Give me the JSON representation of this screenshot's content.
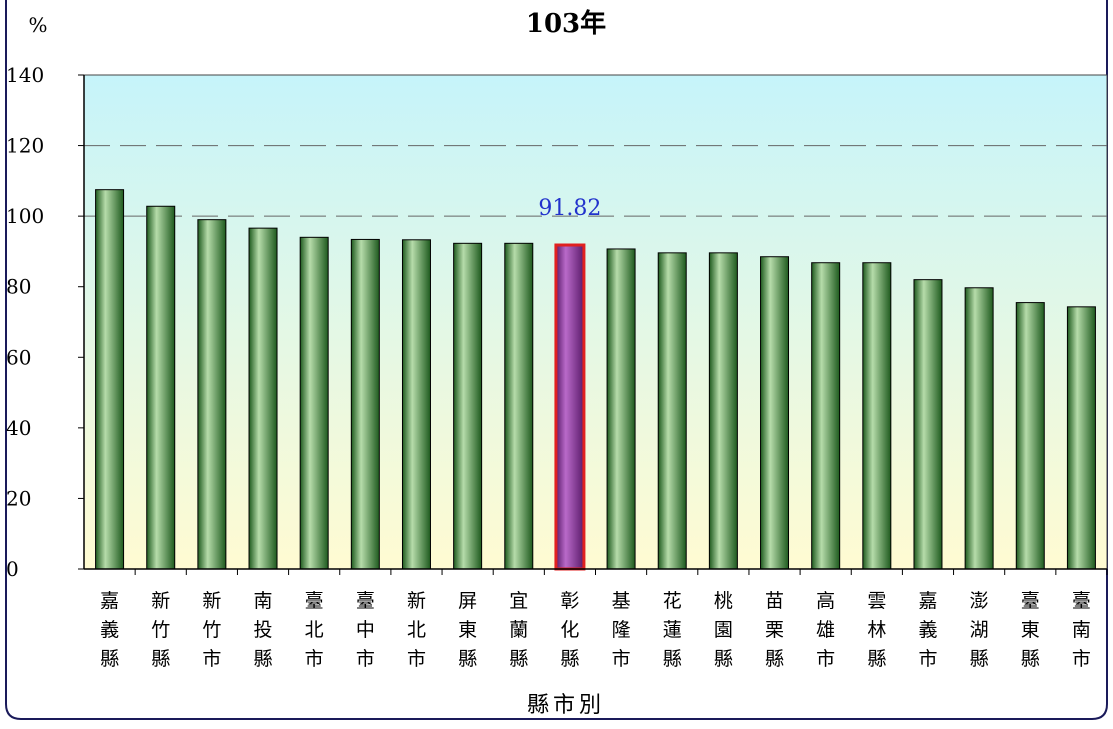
{
  "chart_data": {
    "type": "bar",
    "title": "103年",
    "y_unit": "%",
    "xlabel": "縣市別",
    "ylabel": "",
    "ylim": [
      0,
      140
    ],
    "yticks": [
      0,
      20,
      40,
      60,
      80,
      100,
      120,
      140
    ],
    "grid": "horizontal dashed at 100 and 120",
    "categories": [
      "嘉義縣",
      "新竹縣",
      "新竹市",
      "南投縣",
      "臺北市",
      "臺中市",
      "新北市",
      "屏東縣",
      "宜蘭縣",
      "彰化縣",
      "基隆市",
      "花蓮縣",
      "桃園縣",
      "苗栗縣",
      "高雄市",
      "雲林縣",
      "嘉義市",
      "澎湖縣",
      "臺東縣",
      "臺南市"
    ],
    "values": [
      107.5,
      102.8,
      99.0,
      96.6,
      94.0,
      93.4,
      93.3,
      92.3,
      92.3,
      91.82,
      90.7,
      89.6,
      89.6,
      88.5,
      86.8,
      86.8,
      82.0,
      79.7,
      75.5,
      74.3
    ],
    "highlight": {
      "category": "彰化縣",
      "label": "91.82"
    },
    "colors": {
      "bar_dark": "#1e5a1e",
      "bar_light": "#b6dcaa",
      "highlight_dark": "#5a1a6a",
      "highlight_light": "#b96ac9",
      "highlight_border": "#e02020",
      "highlight_label": "#2233cc",
      "plot_top": "#c6f4fa",
      "plot_bottom": "#fffbd2",
      "frame": "#1a1a5a"
    }
  }
}
